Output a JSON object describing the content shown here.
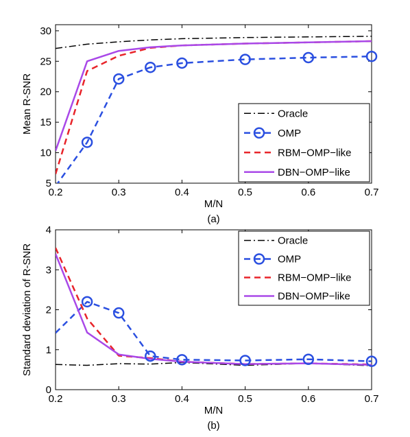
{
  "chart_data": [
    {
      "type": "line",
      "caption": "(a)",
      "xlabel": "M/N",
      "ylabel": "Mean R-SNR",
      "xlim": [
        0.2,
        0.7
      ],
      "ylim": [
        5,
        31
      ],
      "xticks": [
        0.2,
        0.3,
        0.4,
        0.5,
        0.6,
        0.7
      ],
      "yticks": [
        5,
        10,
        15,
        20,
        25,
        30
      ],
      "legend": "right",
      "grid": false,
      "series": [
        {
          "name": "Oracle",
          "color": "#000000",
          "dash": "dashdot",
          "marker": "none",
          "x": [
            0.2,
            0.25,
            0.3,
            0.35,
            0.4,
            0.5,
            0.6,
            0.7
          ],
          "y": [
            27.1,
            27.8,
            28.2,
            28.5,
            28.7,
            28.9,
            29.0,
            29.1
          ]
        },
        {
          "name": "OMP",
          "color": "#2a4fe0",
          "dash": "dashed",
          "marker": "circle",
          "x": [
            0.2,
            0.25,
            0.3,
            0.35,
            0.4,
            0.5,
            0.6,
            0.7
          ],
          "y": [
            4.5,
            11.7,
            22.1,
            24.0,
            24.7,
            25.3,
            25.6,
            25.8
          ]
        },
        {
          "name": "RBM−OMP−like",
          "color": "#e8242a",
          "dash": "dashed",
          "marker": "none",
          "x": [
            0.2,
            0.25,
            0.3,
            0.35,
            0.4,
            0.5,
            0.6,
            0.7
          ],
          "y": [
            6.5,
            23.4,
            25.9,
            27.2,
            27.6,
            27.9,
            28.1,
            28.3
          ]
        },
        {
          "name": "DBN−OMP−like",
          "color": "#a948e8",
          "dash": "solid",
          "marker": "none",
          "x": [
            0.2,
            0.25,
            0.3,
            0.35,
            0.4,
            0.5,
            0.6,
            0.7
          ],
          "y": [
            10.3,
            25.0,
            26.7,
            27.3,
            27.6,
            27.9,
            28.1,
            28.3
          ]
        }
      ]
    },
    {
      "type": "line",
      "caption": "(b)",
      "xlabel": "M/N",
      "ylabel": "Standard deviation of R-SNR",
      "xlim": [
        0.2,
        0.7
      ],
      "ylim": [
        0,
        4
      ],
      "xticks": [
        0.2,
        0.3,
        0.4,
        0.5,
        0.6,
        0.7
      ],
      "yticks": [
        0,
        1,
        2,
        3,
        4
      ],
      "legend": "top-right",
      "grid": false,
      "series": [
        {
          "name": "Oracle",
          "color": "#000000",
          "dash": "dashdot",
          "marker": "none",
          "x": [
            0.2,
            0.25,
            0.3,
            0.35,
            0.4,
            0.5,
            0.6,
            0.7
          ],
          "y": [
            0.63,
            0.61,
            0.65,
            0.64,
            0.68,
            0.61,
            0.66,
            0.6
          ]
        },
        {
          "name": "OMP",
          "color": "#2a4fe0",
          "dash": "dashed",
          "marker": "circle",
          "x": [
            0.2,
            0.25,
            0.3,
            0.35,
            0.4,
            0.5,
            0.6,
            0.7
          ],
          "y": [
            1.42,
            2.2,
            1.92,
            0.84,
            0.75,
            0.73,
            0.76,
            0.71
          ]
        },
        {
          "name": "RBM−OMP−like",
          "color": "#e8242a",
          "dash": "dashed",
          "marker": "none",
          "x": [
            0.2,
            0.25,
            0.3,
            0.35,
            0.4,
            0.5,
            0.6,
            0.7
          ],
          "y": [
            3.55,
            1.78,
            0.85,
            0.79,
            0.7,
            0.64,
            0.66,
            0.63
          ]
        },
        {
          "name": "DBN−OMP−like",
          "color": "#a948e8",
          "dash": "solid",
          "marker": "none",
          "x": [
            0.2,
            0.25,
            0.3,
            0.35,
            0.4,
            0.5,
            0.6,
            0.7
          ],
          "y": [
            3.4,
            1.43,
            0.88,
            0.77,
            0.7,
            0.64,
            0.66,
            0.62
          ]
        }
      ]
    }
  ]
}
